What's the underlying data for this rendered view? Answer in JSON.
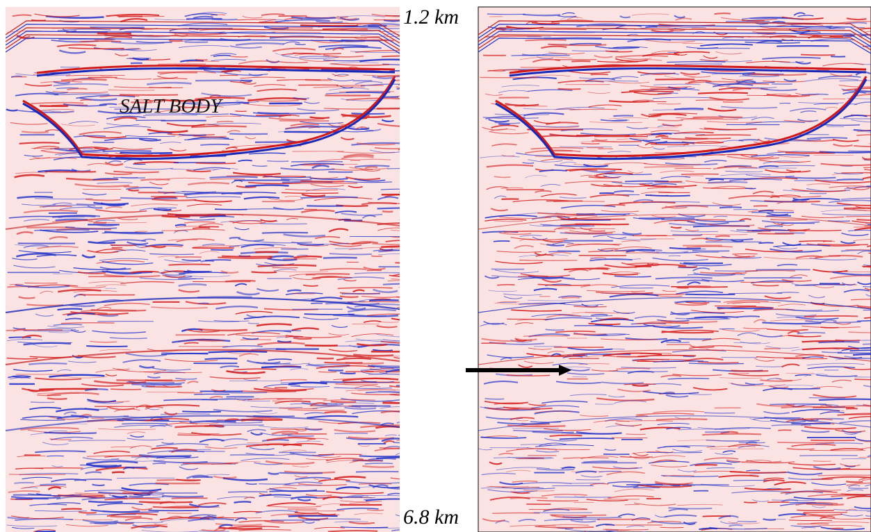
{
  "annotation": "SALT BODY",
  "depth_top": "1.2 km",
  "depth_bottom": "6.8 km"
}
